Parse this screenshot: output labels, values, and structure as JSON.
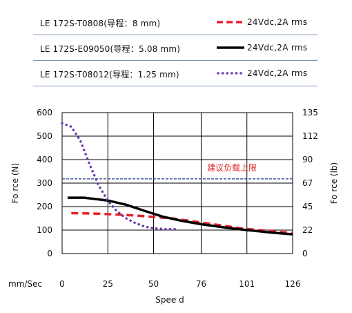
{
  "legend": [
    {
      "model": "LE 172S-T0808(导程：8 mm)",
      "condition": "24Vdc,2A rms",
      "style": "dashed",
      "color": "#e8202a"
    },
    {
      "model": "LE 172S-E09050(导程：5.08 mm)",
      "condition": "24Vdc,2A rms",
      "style": "solid",
      "color": "#000000"
    },
    {
      "model": "LE 172S-T08012(导程：1.25 mm)",
      "condition": "24Vdc,2A rms",
      "style": "dotted",
      "color": "#6a3aa8"
    }
  ],
  "chart_data": {
    "type": "line",
    "xlabel": "Spee d",
    "x_unit_label": "mm/Sec",
    "ylabel_left": "Fo rce (N)",
    "ylabel_right": "Fo rce (lb)",
    "xlim": [
      0,
      126
    ],
    "ylim": [
      0,
      600
    ],
    "x_ticks": [
      "0",
      "25",
      "50",
      "76",
      "101",
      "126"
    ],
    "x_tick_values": [
      0,
      25,
      50,
      76,
      101,
      126
    ],
    "y_ticks_left": [
      "0",
      "100",
      "200",
      "300",
      "400",
      "500",
      "600"
    ],
    "y_tick_values_left": [
      0,
      100,
      200,
      300,
      400,
      500,
      600
    ],
    "y_ticks_right": [
      "0",
      "22",
      "45",
      "67",
      "90",
      "112",
      "135"
    ],
    "grid": true,
    "reference_line": {
      "label": "建议负载上限",
      "y": 318,
      "color": "#1a3a8a"
    },
    "series": [
      {
        "name": "LE 172S-T0808",
        "style": "dashed",
        "color": "#e8202a",
        "points": [
          [
            5,
            172
          ],
          [
            20,
            170
          ],
          [
            40,
            162
          ],
          [
            60,
            150
          ],
          [
            80,
            128
          ],
          [
            100,
            105
          ],
          [
            126,
            88
          ]
        ]
      },
      {
        "name": "LE 172S-E09050",
        "style": "solid",
        "color": "#000000",
        "points": [
          [
            3,
            238
          ],
          [
            12,
            238
          ],
          [
            25,
            226
          ],
          [
            35,
            208
          ],
          [
            45,
            182
          ],
          [
            55,
            157
          ],
          [
            65,
            140
          ],
          [
            76,
            125
          ],
          [
            90,
            110
          ],
          [
            101,
            100
          ],
          [
            115,
            89
          ],
          [
            126,
            82
          ]
        ]
      },
      {
        "name": "LE 172S-T08012",
        "style": "dotted",
        "color": "#6a3aa8",
        "points": [
          [
            0,
            555
          ],
          [
            5,
            540
          ],
          [
            10,
            480
          ],
          [
            15,
            380
          ],
          [
            20,
            290
          ],
          [
            25,
            225
          ],
          [
            30,
            180
          ],
          [
            35,
            150
          ],
          [
            40,
            130
          ],
          [
            45,
            115
          ],
          [
            50,
            108
          ],
          [
            56,
            104
          ],
          [
            63,
            104
          ]
        ]
      }
    ]
  }
}
